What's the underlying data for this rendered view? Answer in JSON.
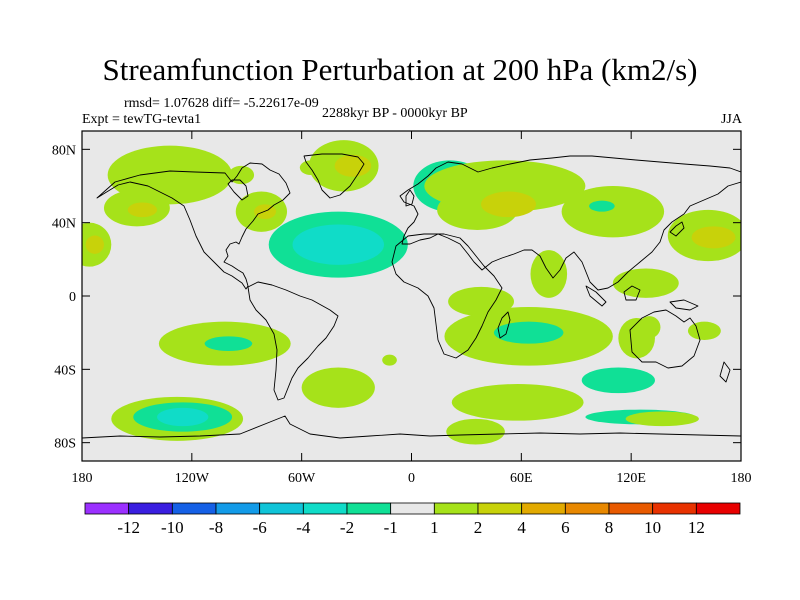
{
  "header": {
    "title": "Streamfunction Perturbation at 200 hPa (km2/s)",
    "stats": "rmsd= 1.07628 diff= -5.22617e-09",
    "experiment": "Expt = tewTG-tevta1",
    "period": "2288kyr BP - 0000kyr BP",
    "season": "JJA"
  },
  "chart_data": {
    "type": "heatmap",
    "title": "Streamfunction Perturbation at 200 hPa (km2/s)",
    "subtitle": "2288kyr BP - 0000kyr BP",
    "xlabel": "",
    "ylabel": "",
    "xlim": [
      -180,
      180
    ],
    "ylim": [
      -90,
      90
    ],
    "x_ticks": [
      {
        "value": -180,
        "label": "180"
      },
      {
        "value": -120,
        "label": "120W"
      },
      {
        "value": -60,
        "label": "60W"
      },
      {
        "value": 0,
        "label": "0"
      },
      {
        "value": 60,
        "label": "60E"
      },
      {
        "value": 120,
        "label": "120E"
      },
      {
        "value": 180,
        "label": "180"
      }
    ],
    "y_ticks": [
      {
        "value": 80,
        "label": "80N"
      },
      {
        "value": 40,
        "label": "40N"
      },
      {
        "value": 0,
        "label": "0"
      },
      {
        "value": -40,
        "label": "40S"
      },
      {
        "value": -80,
        "label": "80S"
      }
    ],
    "colorbar": {
      "labels": [
        "-12",
        "-10",
        "-8",
        "-6",
        "-4",
        "-2",
        "-1",
        "1",
        "2",
        "4",
        "6",
        "8",
        "10",
        "12"
      ],
      "colors": [
        "#9b30ff",
        "#3a1ee0",
        "#1560e6",
        "#139be8",
        "#10c4d8",
        "#10dcc8",
        "#10e096",
        "#e8e8e8",
        "#a6e21a",
        "#c8d20a",
        "#e2aa00",
        "#e88800",
        "#e85a00",
        "#e83200",
        "#e80000"
      ]
    },
    "anomalies": [
      {
        "lon": -132,
        "lat": 66,
        "rlon": 34,
        "rlat": 16,
        "level": 1
      },
      {
        "lon": -150,
        "lat": 48,
        "rlon": 18,
        "rlat": 10,
        "level": 1
      },
      {
        "lon": -147,
        "lat": 47,
        "rlon": 8,
        "rlat": 4,
        "level": 2
      },
      {
        "lon": -176,
        "lat": 28,
        "rlon": 12,
        "rlat": 12,
        "level": 1
      },
      {
        "lon": -173,
        "lat": 28,
        "rlon": 5,
        "rlat": 5,
        "level": 2
      },
      {
        "lon": -82,
        "lat": 46,
        "rlon": 14,
        "rlat": 11,
        "level": 1
      },
      {
        "lon": -80,
        "lat": 46,
        "rlon": 6,
        "rlat": 4,
        "level": 2
      },
      {
        "lon": -93,
        "lat": 66,
        "rlon": 7,
        "rlat": 5,
        "level": 1
      },
      {
        "lon": -37,
        "lat": 71,
        "rlon": 19,
        "rlat": 14,
        "level": 1
      },
      {
        "lon": -32,
        "lat": 71,
        "rlon": 10,
        "rlat": 6,
        "level": 2
      },
      {
        "lon": -55,
        "lat": 70,
        "rlon": 6,
        "rlat": 4,
        "level": 1
      },
      {
        "lon": -40,
        "lat": 28,
        "rlon": 38,
        "rlat": 18,
        "level": -1
      },
      {
        "lon": -40,
        "lat": 28,
        "rlon": 25,
        "rlat": 11,
        "level": -2
      },
      {
        "lon": 21,
        "lat": 60,
        "rlon": 20,
        "rlat": 14,
        "level": -1
      },
      {
        "lon": 21,
        "lat": 57,
        "rlon": 9,
        "rlat": 7,
        "level": -2
      },
      {
        "lon": 51,
        "lat": 60,
        "rlon": 44,
        "rlat": 14,
        "level": 1
      },
      {
        "lon": 36,
        "lat": 47,
        "rlon": 22,
        "rlat": 11,
        "level": 1
      },
      {
        "lon": 53,
        "lat": 50,
        "rlon": 15,
        "rlat": 7,
        "level": 2
      },
      {
        "lon": 110,
        "lat": 46,
        "rlon": 28,
        "rlat": 14,
        "level": 1
      },
      {
        "lon": 104,
        "lat": 49,
        "rlon": 7,
        "rlat": 3,
        "level": -1
      },
      {
        "lon": 162,
        "lat": 33,
        "rlon": 22,
        "rlat": 14,
        "level": 1
      },
      {
        "lon": 165,
        "lat": 32,
        "rlon": 12,
        "rlat": 6,
        "level": 2
      },
      {
        "lon": 128,
        "lat": 7,
        "rlon": 18,
        "rlat": 8,
        "level": 1
      },
      {
        "lon": 75,
        "lat": 12,
        "rlon": 10,
        "rlat": 13,
        "level": 1
      },
      {
        "lon": 123,
        "lat": -23,
        "rlon": 10,
        "rlat": 11,
        "level": 1
      },
      {
        "lon": 38,
        "lat": -3,
        "rlon": 18,
        "rlat": 8,
        "level": 1
      },
      {
        "lon": 130,
        "lat": -17,
        "rlon": 6,
        "rlat": 6,
        "level": 1
      },
      {
        "lon": 160,
        "lat": -19,
        "rlon": 9,
        "rlat": 5,
        "level": 1
      },
      {
        "lon": 64,
        "lat": -22,
        "rlon": 46,
        "rlat": 16,
        "level": 1
      },
      {
        "lon": 64,
        "lat": -20,
        "rlon": 19,
        "rlat": 6,
        "level": -1
      },
      {
        "lon": -102,
        "lat": -26,
        "rlon": 36,
        "rlat": 12,
        "level": 1
      },
      {
        "lon": -100,
        "lat": -26,
        "rlon": 13,
        "rlat": 4,
        "level": -1
      },
      {
        "lon": -40,
        "lat": -50,
        "rlon": 20,
        "rlat": 11,
        "level": 1
      },
      {
        "lon": -12,
        "lat": -35,
        "rlon": 4,
        "rlat": 3,
        "level": 1
      },
      {
        "lon": -128,
        "lat": -67,
        "rlon": 36,
        "rlat": 12,
        "level": 1
      },
      {
        "lon": -125,
        "lat": -66,
        "rlon": 27,
        "rlat": 8,
        "level": -1
      },
      {
        "lon": -125,
        "lat": -66,
        "rlon": 14,
        "rlat": 5,
        "level": -2
      },
      {
        "lon": 58,
        "lat": -58,
        "rlon": 36,
        "rlat": 10,
        "level": 1
      },
      {
        "lon": 35,
        "lat": -74,
        "rlon": 16,
        "rlat": 7,
        "level": 1
      },
      {
        "lon": 113,
        "lat": -46,
        "rlon": 20,
        "rlat": 7,
        "level": -1
      },
      {
        "lon": 125,
        "lat": -66,
        "rlon": 30,
        "rlat": 4,
        "level": -1
      },
      {
        "lon": 137,
        "lat": -67,
        "rlon": 20,
        "rlat": 4,
        "level": 1
      }
    ]
  }
}
